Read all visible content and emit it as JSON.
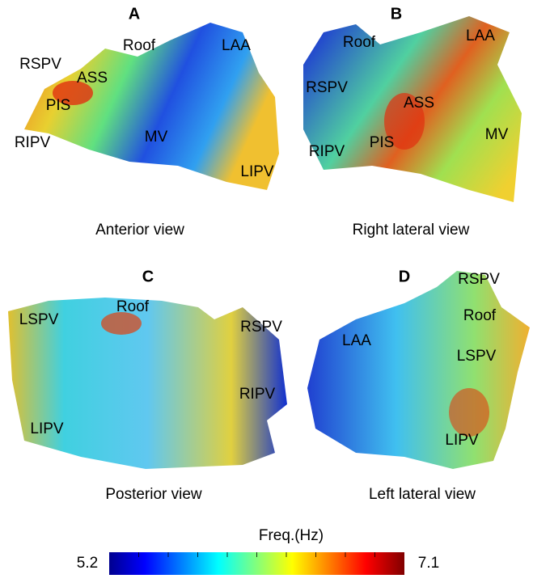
{
  "panels": [
    {
      "letter": "A",
      "caption": "Anterior view",
      "labels": [
        "RSPV",
        "Roof",
        "ASS",
        "PIS",
        "RIPV",
        "MV",
        "LAA",
        "LIPV"
      ]
    },
    {
      "letter": "B",
      "caption": "Right lateral view",
      "labels": [
        "Roof",
        "LAA",
        "RSPV",
        "ASS",
        "PIS",
        "RIPV",
        "MV"
      ]
    },
    {
      "letter": "C",
      "caption": "Posterior view",
      "labels": [
        "LSPV",
        "Roof",
        "RSPV",
        "RIPV",
        "LIPV"
      ]
    },
    {
      "letter": "D",
      "caption": "Left lateral view",
      "labels": [
        "RSPV",
        "Roof",
        "LAA",
        "LSPV",
        "LIPV"
      ]
    }
  ],
  "colorbar": {
    "title": "Freq.(Hz)",
    "min_label": "5.2",
    "max_label": "7.1"
  }
}
